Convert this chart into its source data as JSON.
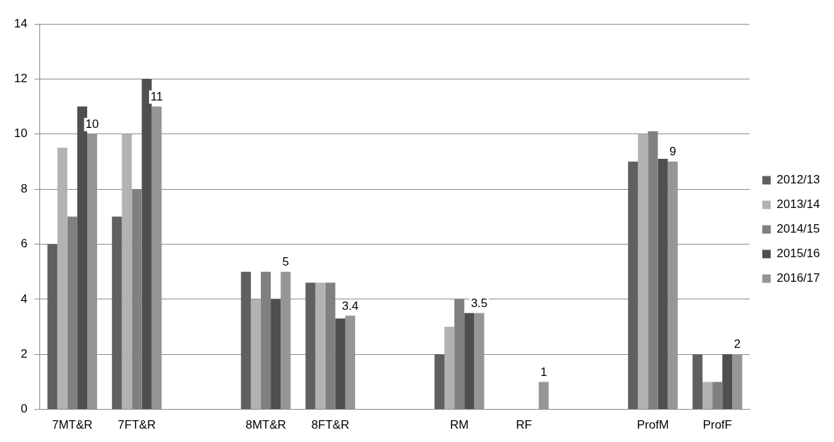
{
  "chart_data": {
    "type": "bar",
    "categories": [
      "7MT&R",
      "7FT&R",
      null,
      "8MT&R",
      "8FT&R",
      null,
      "RM",
      "RF",
      null,
      "ProfM",
      "ProfF"
    ],
    "series": [
      {
        "name": "2012/13",
        "color": "#606060",
        "values": [
          6,
          7,
          null,
          5,
          4.6,
          null,
          2,
          null,
          null,
          9,
          2
        ]
      },
      {
        "name": "2013/14",
        "color": "#b2b2b2",
        "values": [
          9.5,
          10,
          null,
          4,
          4.6,
          null,
          3,
          null,
          null,
          10,
          1
        ]
      },
      {
        "name": "2014/15",
        "color": "#808080",
        "values": [
          7,
          8,
          null,
          5,
          4.6,
          null,
          4,
          null,
          null,
          10.1,
          1
        ]
      },
      {
        "name": "2015/16",
        "color": "#4f4f4f",
        "values": [
          11,
          12,
          null,
          4,
          3.3,
          null,
          3.5,
          null,
          null,
          9.1,
          2
        ]
      },
      {
        "name": "2016/17",
        "color": "#969696",
        "values": [
          10,
          11,
          null,
          5,
          3.4,
          null,
          3.5,
          1,
          null,
          9,
          2
        ],
        "value_labels": [
          "10",
          "11",
          null,
          "5",
          "3.4",
          null,
          "3.5",
          "1",
          null,
          "9",
          "2"
        ]
      }
    ],
    "ylim": [
      0,
      14
    ],
    "yticks": [
      0,
      2,
      4,
      6,
      8,
      10,
      12,
      14
    ],
    "grid": "y",
    "legend": "right"
  }
}
